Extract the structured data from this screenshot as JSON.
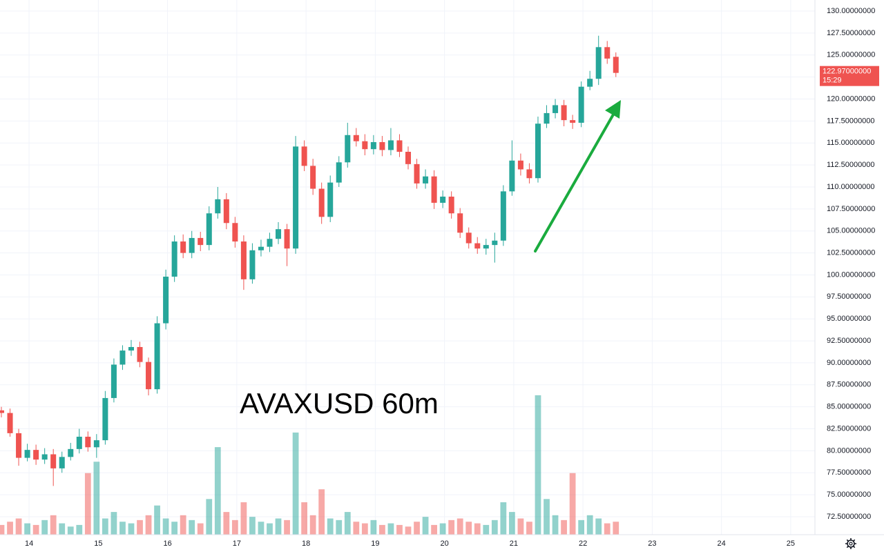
{
  "chart_data": {
    "type": "candlestick",
    "annotation": "AVAXUSD 60m",
    "x": [
      13.6,
      13.725,
      13.85,
      13.975,
      14.1,
      14.225,
      14.35,
      14.475,
      14.6,
      14.725,
      14.85,
      14.975,
      15.1,
      15.225,
      15.35,
      15.475,
      15.6,
      15.725,
      15.85,
      15.975,
      16.1,
      16.225,
      16.35,
      16.475,
      16.6,
      16.725,
      16.85,
      16.975,
      17.1,
      17.225,
      17.35,
      17.475,
      17.6,
      17.725,
      17.85,
      17.975,
      18.1,
      18.225,
      18.35,
      18.475,
      18.6,
      18.725,
      18.85,
      18.975,
      19.1,
      19.225,
      19.35,
      19.475,
      19.6,
      19.725,
      19.85,
      19.975,
      20.1,
      20.225,
      20.35,
      20.475,
      20.6,
      20.725,
      20.85,
      20.975,
      21.1,
      21.225,
      21.35,
      21.475,
      21.6,
      21.725,
      21.85,
      21.975,
      22.1,
      22.225,
      22.35,
      22.475
    ],
    "open": [
      84.6,
      84.3,
      82.0,
      79.2,
      80.1,
      79.0,
      79.6,
      78.0,
      79.3,
      80.2,
      81.6,
      80.4,
      81.2,
      86.0,
      89.8,
      91.4,
      91.8,
      90.1,
      87.0,
      94.5,
      99.8,
      103.8,
      102.5,
      104.2,
      103.4,
      107.0,
      108.6,
      105.9,
      103.8,
      99.5,
      102.8,
      103.2,
      104.1,
      105.2,
      103.0,
      114.6,
      112.4,
      109.8,
      106.6,
      110.5,
      112.8,
      115.9,
      115.2,
      114.3,
      115.1,
      114.2,
      115.3,
      114.0,
      112.6,
      110.4,
      111.2,
      108.2,
      108.9,
      107.0,
      104.8,
      103.6,
      103.0,
      103.4,
      103.9,
      109.5,
      113.0,
      112.0,
      111.0,
      117.2,
      118.4,
      119.3,
      117.6,
      117.3,
      121.4,
      122.3,
      125.9,
      124.8
    ],
    "high": [
      85.0,
      84.8,
      82.5,
      80.8,
      80.7,
      80.3,
      80.2,
      79.9,
      80.9,
      82.5,
      82.2,
      81.9,
      86.8,
      90.5,
      92.0,
      92.6,
      92.4,
      90.6,
      95.3,
      100.6,
      104.5,
      104.6,
      105.0,
      104.9,
      107.8,
      110.0,
      109.3,
      106.6,
      104.5,
      103.6,
      104.0,
      104.8,
      106.0,
      105.8,
      115.8,
      115.3,
      113.2,
      110.5,
      111.3,
      113.5,
      117.3,
      116.7,
      116.0,
      115.9,
      115.8,
      116.7,
      116.0,
      114.6,
      113.2,
      112.0,
      111.9,
      109.6,
      109.5,
      107.6,
      105.4,
      104.3,
      104.1,
      104.8,
      110.2,
      115.3,
      113.8,
      112.7,
      118.0,
      119.3,
      120.0,
      119.9,
      118.2,
      122.0,
      123.2,
      127.2,
      126.6,
      125.3
    ],
    "low": [
      83.8,
      81.6,
      78.3,
      78.8,
      78.4,
      78.5,
      76.0,
      77.5,
      78.9,
      79.7,
      79.9,
      79.2,
      80.7,
      85.5,
      89.2,
      90.8,
      89.5,
      86.3,
      86.5,
      93.8,
      99.2,
      101.9,
      101.9,
      102.7,
      102.8,
      106.4,
      105.2,
      103.1,
      98.3,
      99.0,
      102.1,
      102.6,
      103.5,
      101.0,
      102.4,
      111.8,
      109.1,
      105.8,
      106.0,
      110.0,
      112.2,
      114.6,
      113.6,
      113.7,
      113.5,
      113.6,
      113.4,
      112.0,
      109.8,
      109.8,
      107.5,
      107.6,
      106.4,
      104.2,
      103.0,
      102.4,
      102.3,
      101.4,
      103.3,
      109.0,
      111.3,
      110.4,
      110.5,
      116.7,
      117.8,
      116.9,
      116.6,
      116.8,
      121.0,
      121.6,
      124.0,
      122.5
    ],
    "close": [
      84.3,
      82.0,
      79.2,
      80.1,
      79.0,
      79.6,
      78.0,
      79.3,
      80.2,
      81.6,
      80.4,
      81.2,
      86.0,
      89.8,
      91.4,
      91.8,
      90.1,
      87.0,
      94.5,
      99.8,
      103.8,
      102.5,
      104.2,
      103.4,
      107.0,
      108.6,
      105.9,
      103.8,
      99.5,
      102.8,
      103.2,
      104.1,
      105.2,
      103.0,
      114.6,
      112.4,
      109.8,
      106.6,
      110.5,
      112.8,
      115.9,
      115.2,
      114.3,
      115.1,
      114.2,
      115.3,
      114.0,
      112.6,
      110.4,
      111.2,
      108.2,
      108.9,
      107.0,
      104.8,
      103.6,
      103.0,
      103.4,
      103.9,
      109.5,
      113.0,
      112.0,
      111.0,
      117.2,
      118.4,
      119.3,
      117.6,
      117.3,
      121.4,
      122.3,
      125.9,
      124.6,
      122.97
    ],
    "volume": [
      6,
      8,
      10,
      7,
      6,
      9,
      12,
      7,
      5,
      6,
      38,
      45,
      10,
      14,
      8,
      7,
      9,
      12,
      18,
      10,
      8,
      12,
      9,
      7,
      22,
      54,
      14,
      9,
      20,
      11,
      8,
      7,
      10,
      9,
      63,
      20,
      12,
      28,
      10,
      9,
      14,
      8,
      7,
      9,
      6,
      7,
      6,
      5,
      8,
      11,
      6,
      7,
      9,
      10,
      8,
      7,
      6,
      9,
      20,
      14,
      10,
      8,
      86,
      22,
      12,
      9,
      38,
      9,
      12,
      10,
      7,
      8
    ],
    "volume_lim": [
      0,
      100
    ],
    "up_color": "#26a69a",
    "down_color": "#ef5350",
    "last_price": {
      "value": 122.97,
      "label": "122.97000000"
    },
    "countdown": "15:29",
    "xlim": [
      13.58,
      25.35
    ],
    "xticks": [
      14,
      15,
      16,
      17,
      18,
      19,
      20,
      21,
      22,
      23,
      24,
      25
    ],
    "ylim": [
      70.46,
      131.26
    ],
    "yticks": [
      {
        "value": 72.5,
        "label": "72.50000000"
      },
      {
        "value": 75,
        "label": "75.00000000"
      },
      {
        "value": 77.5,
        "label": "77.50000000"
      },
      {
        "value": 80,
        "label": "80.00000000"
      },
      {
        "value": 82.5,
        "label": "82.50000000"
      },
      {
        "value": 85,
        "label": "85.00000000"
      },
      {
        "value": 87.5,
        "label": "87.50000000"
      },
      {
        "value": 90,
        "label": "90.00000000"
      },
      {
        "value": 92.5,
        "label": "92.50000000"
      },
      {
        "value": 95,
        "label": "95.00000000"
      },
      {
        "value": 97.5,
        "label": "97.50000000"
      },
      {
        "value": 100,
        "label": "100.00000000"
      },
      {
        "value": 102.5,
        "label": "102.50000000"
      },
      {
        "value": 105,
        "label": "105.00000000"
      },
      {
        "value": 107.5,
        "label": "107.50000000"
      },
      {
        "value": 110,
        "label": "110.00000000"
      },
      {
        "value": 112.5,
        "label": "112.50000000"
      },
      {
        "value": 115,
        "label": "115.00000000"
      },
      {
        "value": 117.5,
        "label": "117.50000000"
      },
      {
        "value": 120,
        "label": "120.00000000"
      },
      {
        "value": 122.5,
        "label": "122.50000000"
      },
      {
        "value": 125,
        "label": "125.00000000"
      },
      {
        "value": 127.5,
        "label": "127.50000000"
      },
      {
        "value": 130,
        "label": "130.00000000"
      }
    ],
    "grid": true
  }
}
